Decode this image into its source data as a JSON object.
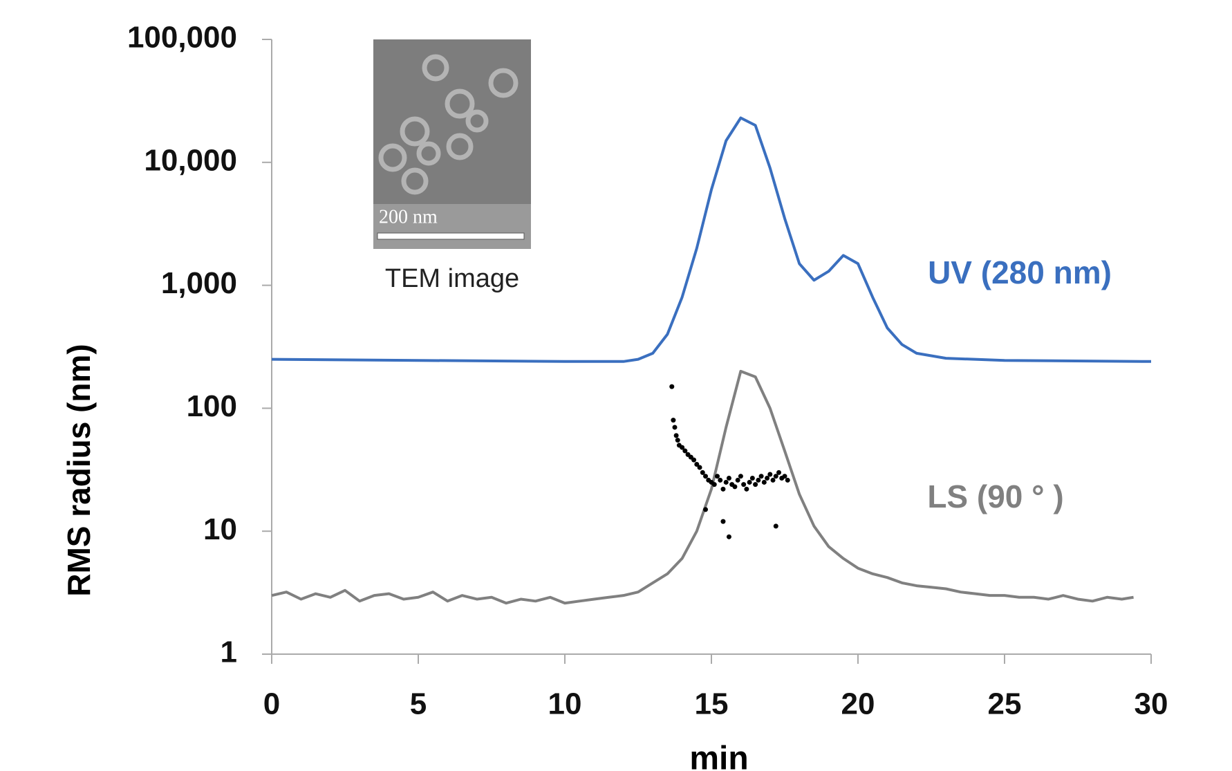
{
  "chart_data": {
    "type": "line",
    "x_label": "min",
    "y_label": "RMS radius (nm)",
    "yscale": "log",
    "xlim": [
      0,
      30
    ],
    "ylim": [
      1,
      100000
    ],
    "xticks": [
      0,
      5,
      10,
      15,
      20,
      25,
      30
    ],
    "yticks": [
      1,
      10,
      100,
      {
        "value": 1000,
        "label": "1,000"
      },
      {
        "value": 10000,
        "label": "10,000"
      },
      {
        "value": 100000,
        "label": "100,000"
      }
    ],
    "inset": {
      "caption": "TEM image",
      "scale_bar": "200 nm"
    },
    "series": [
      {
        "name": "UV (280 nm)",
        "color": "#3a6fbf",
        "type": "line",
        "x": [
          0,
          5,
          10,
          12,
          12.5,
          13,
          13.5,
          14,
          14.5,
          15,
          15.5,
          16,
          16.5,
          17,
          17.5,
          18,
          18.5,
          19,
          19.5,
          20,
          20.5,
          21,
          21.5,
          22,
          23,
          25,
          30
        ],
        "values": [
          250,
          245,
          240,
          240,
          250,
          280,
          400,
          800,
          2000,
          6000,
          15000,
          23000,
          20000,
          9000,
          3500,
          1500,
          1100,
          1300,
          1750,
          1500,
          800,
          450,
          330,
          280,
          255,
          245,
          240
        ]
      },
      {
        "name": "LS (90 ° )",
        "color": "#808080",
        "type": "line",
        "x": [
          0,
          0.5,
          1,
          1.5,
          2,
          2.5,
          3,
          3.5,
          4,
          4.5,
          5,
          5.5,
          6,
          6.5,
          7,
          7.5,
          8,
          8.5,
          9,
          9.5,
          10,
          10.5,
          11,
          11.5,
          12,
          12.5,
          13,
          13.5,
          14,
          14.5,
          15,
          15.5,
          16,
          16.5,
          17,
          17.5,
          18,
          18.5,
          19,
          19.5,
          20,
          20.5,
          21,
          21.5,
          22,
          22.5,
          23,
          23.5,
          24,
          24.5,
          25,
          25.5,
          26,
          26.5,
          27,
          27.5,
          28,
          28.5,
          29,
          29.4
        ],
        "values": [
          3.0,
          3.2,
          2.8,
          3.1,
          2.9,
          3.3,
          2.7,
          3.0,
          3.1,
          2.8,
          2.9,
          3.2,
          2.7,
          3.0,
          2.8,
          2.9,
          2.6,
          2.8,
          2.7,
          2.9,
          2.6,
          2.7,
          2.8,
          2.9,
          3.0,
          3.2,
          3.8,
          4.5,
          6,
          10,
          22,
          70,
          200,
          180,
          100,
          45,
          20,
          11,
          7.5,
          6,
          5,
          4.5,
          4.2,
          3.8,
          3.6,
          3.5,
          3.4,
          3.2,
          3.1,
          3.0,
          3.0,
          2.9,
          2.9,
          2.8,
          3.0,
          2.8,
          2.7,
          2.9,
          2.8,
          2.9
        ]
      },
      {
        "color": "#000000",
        "type": "scatter",
        "x": [
          13.65,
          13.7,
          13.75,
          13.8,
          13.85,
          13.9,
          14.0,
          14.1,
          14.2,
          14.3,
          14.4,
          14.5,
          14.6,
          14.7,
          14.8,
          14.8,
          14.9,
          15.0,
          15.1,
          15.2,
          15.3,
          15.4,
          15.4,
          15.5,
          15.6,
          15.6,
          15.7,
          15.8,
          15.9,
          16.0,
          16.1,
          16.2,
          16.3,
          16.4,
          16.5,
          16.6,
          16.7,
          16.8,
          16.9,
          17.0,
          17.1,
          17.2,
          17.2,
          17.3,
          17.4,
          17.5,
          17.6
        ],
        "values": [
          150,
          80,
          70,
          60,
          55,
          50,
          48,
          45,
          42,
          40,
          38,
          35,
          33,
          30,
          28,
          15,
          26,
          25,
          24,
          28,
          26,
          22,
          12,
          25,
          27,
          9,
          24,
          23,
          26,
          28,
          24,
          22,
          25,
          27,
          24,
          26,
          28,
          25,
          27,
          29,
          26,
          28,
          11,
          30,
          27,
          28,
          26
        ]
      }
    ]
  }
}
